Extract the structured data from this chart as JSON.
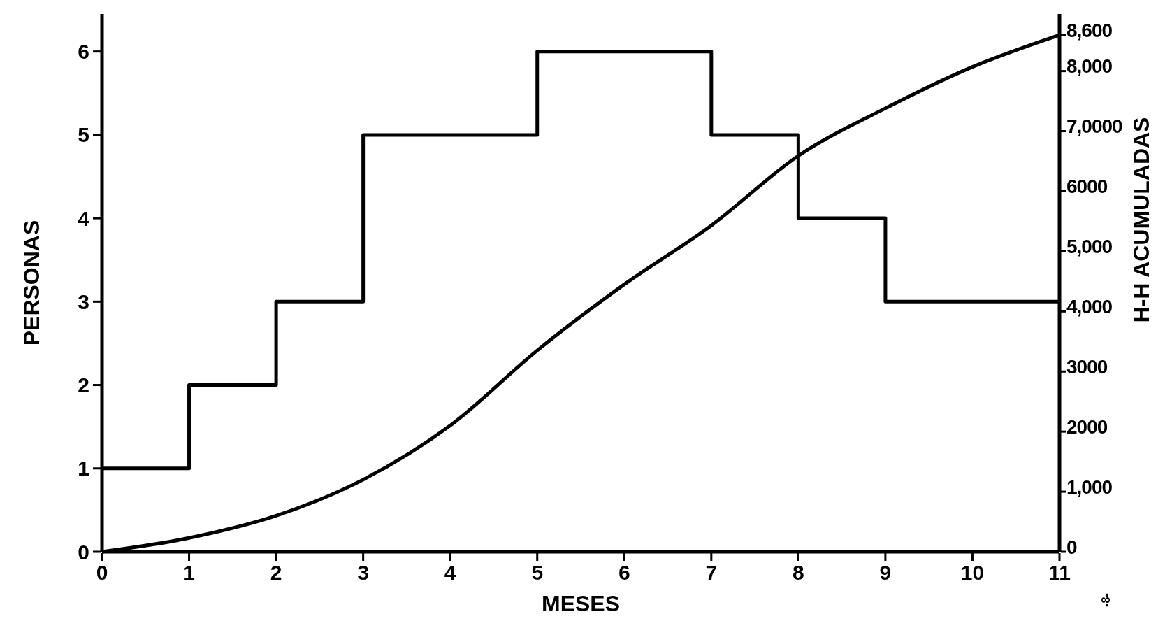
{
  "chart_data": {
    "type": "line",
    "xlabel": "MESES",
    "ylabel": "PERSONAS",
    "y2label": "H-H ACUMULADAS",
    "xlim": [
      0,
      11
    ],
    "xticks": [
      0,
      1,
      2,
      3,
      4,
      5,
      6,
      7,
      8,
      9,
      10,
      11
    ],
    "ylim": [
      0,
      6.45
    ],
    "yticks": [
      0,
      1,
      2,
      3,
      4,
      5,
      6
    ],
    "y2lim": [
      0,
      8950
    ],
    "y2ticks": [
      0,
      {
        "value": 1000,
        "label": "1,000"
      },
      2000,
      3000,
      {
        "value": 4000,
        "label": "4,000"
      },
      {
        "value": 5000,
        "label": "5,000"
      },
      6000,
      {
        "value": 7000,
        "label": "7,0000"
      },
      {
        "value": 8000,
        "label": "8,000"
      },
      {
        "value": 8600,
        "label": "8,600"
      }
    ],
    "series": [
      {
        "type": "step",
        "color": "#000000",
        "x": [
          0,
          1,
          2,
          3,
          5,
          7,
          8,
          9,
          11
        ],
        "values": [
          1,
          2,
          3,
          5,
          6,
          5,
          4,
          3,
          3
        ]
      },
      {
        "type": "line",
        "axis": "y2",
        "color": "#000000",
        "x": [
          0,
          1,
          2,
          3,
          4,
          5,
          6,
          7,
          8,
          9,
          10,
          11
        ],
        "values": [
          0,
          230,
          600,
          1200,
          2100,
          3350,
          4450,
          5430,
          6590,
          7380,
          8070,
          8600
        ]
      }
    ],
    "annotations": [
      "-8-"
    ]
  }
}
